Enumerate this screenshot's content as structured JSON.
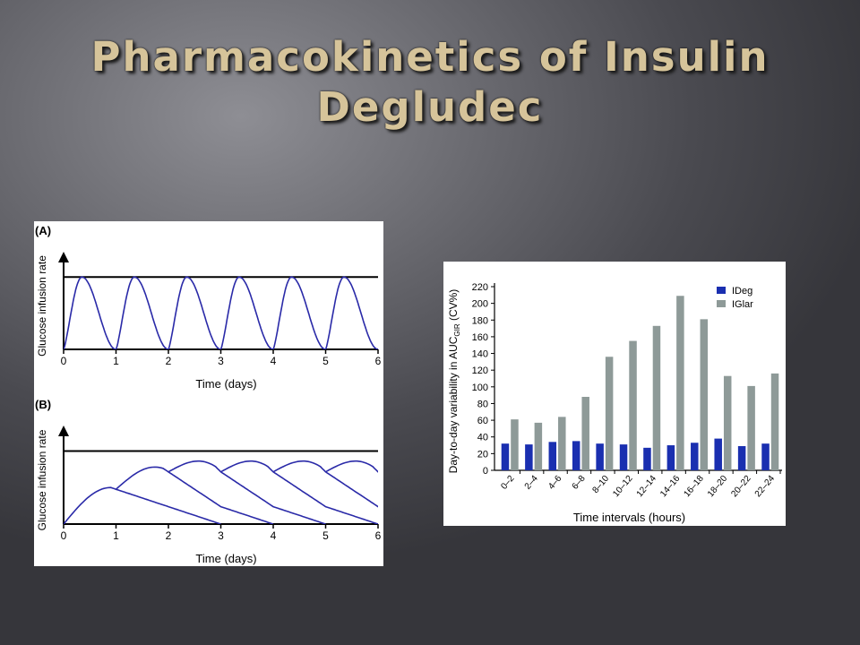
{
  "slide": {
    "title_line1": "Pharmacokinetics of Insulin",
    "title_line2": "Degludec"
  },
  "colors": {
    "curve": "#2a2aa8",
    "ideg": "#1a2fb0",
    "iglar": "#8e9a98",
    "title": "#d6c49a"
  },
  "chart_data": [
    {
      "type": "line",
      "panel_label": "(A)",
      "xlabel": "Time (days)",
      "ylabel": "Glucose infusion rate",
      "x_ticks": [
        "0",
        "1",
        "2",
        "3",
        "4",
        "5",
        "6"
      ],
      "xlim": [
        0,
        6
      ],
      "ylim": [
        0,
        1.3
      ],
      "steady_state_level": 1.0,
      "dose_times": [
        0,
        1,
        2,
        3,
        4,
        5
      ],
      "dose_peak_offset_days": 0.35,
      "dose_duration_days": 1.0,
      "dose_peak_height": 1.0
    },
    {
      "type": "line",
      "panel_label": "(B)",
      "xlabel": "Time (days)",
      "ylabel": "Glucose infusion rate",
      "x_ticks": [
        "0",
        "1",
        "2",
        "3",
        "4",
        "5",
        "6"
      ],
      "xlim": [
        0,
        6
      ],
      "ylim": [
        0,
        1.3
      ],
      "steady_state_level": 1.0,
      "dose_times": [
        0,
        1,
        2,
        3,
        4,
        5
      ],
      "single_dose_peak_offset_days": 0.9,
      "single_dose_duration_days": 3.0,
      "single_dose_peak_height": 0.5
    },
    {
      "type": "bar",
      "ylabel_main": "Day-to-day variability in AUC",
      "ylabel_sub": "GIR",
      "ylabel_end": " (CV%)",
      "xlabel": "Time intervals (hours)",
      "ylim": [
        0,
        220
      ],
      "y_ticks": [
        0,
        20,
        40,
        60,
        80,
        100,
        120,
        140,
        160,
        180,
        200,
        220
      ],
      "categories": [
        "0–2",
        "2–4",
        "4–6",
        "6–8",
        "8–10",
        "10–12",
        "12–14",
        "14–16",
        "16–18",
        "18–20",
        "20–22",
        "22–24"
      ],
      "series": [
        {
          "name": "IDeg",
          "values": [
            32,
            31,
            34,
            35,
            32,
            31,
            27,
            30,
            33,
            38,
            29,
            32
          ]
        },
        {
          "name": "IGlar",
          "values": [
            61,
            57,
            64,
            88,
            136,
            155,
            173,
            209,
            181,
            113,
            101,
            116
          ]
        }
      ],
      "legend": "top-right"
    }
  ]
}
